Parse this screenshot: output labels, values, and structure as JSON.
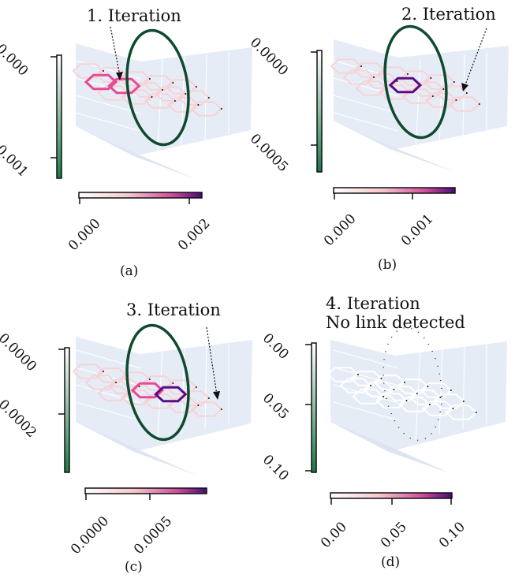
{
  "colors": {
    "ring": "#0f4a2e",
    "pane": "#e6ecf6",
    "grid": "#ffffff",
    "hex_faint": "#f6d3d6",
    "hex_mid": "#e54b96",
    "hex_dark": "#5b0b86",
    "cbar_v": [
      "#ffffff",
      "#1b7a4a"
    ],
    "cbar_h": [
      "#ffffff",
      "#f6c9cc",
      "#d24f9d",
      "#4a0a7a"
    ]
  },
  "panels": [
    {
      "caption": "(a)",
      "title": "1. Iteration",
      "vcbar_ticks": [
        "0.000",
        "0.001"
      ],
      "hcbar_ticks": [
        "0.000",
        "0.002"
      ],
      "highlight": {
        "hexes": [
          [
            0,
            1,
            "hex_mid"
          ],
          [
            1,
            1,
            "hex_mid"
          ]
        ]
      }
    },
    {
      "caption": "(b)",
      "title": "2. Iteration",
      "vcbar_ticks": [
        "0.0000",
        "0.0005"
      ],
      "hcbar_ticks": [
        "0.000",
        "0.001"
      ],
      "highlight": {
        "hexes": [
          [
            2,
            1,
            "hex_dark"
          ]
        ]
      }
    },
    {
      "caption": "(c)",
      "title": "3. Iteration",
      "vcbar_ticks": [
        "0.0000",
        "0.0002"
      ],
      "hcbar_ticks": [
        "0.0000",
        "0.0005"
      ],
      "highlight": {
        "hexes": [
          [
            2,
            1,
            "hex_mid"
          ],
          [
            3,
            1,
            "hex_dark"
          ]
        ]
      }
    },
    {
      "caption": "(d)",
      "title": "4. Iteration",
      "title2": "No link detected",
      "vcbar_ticks": [
        "0.00",
        "0.05",
        "0.10"
      ],
      "hcbar_ticks": [
        "0.00",
        "0.05",
        "0.10"
      ],
      "highlight": {
        "hexes": []
      }
    }
  ]
}
